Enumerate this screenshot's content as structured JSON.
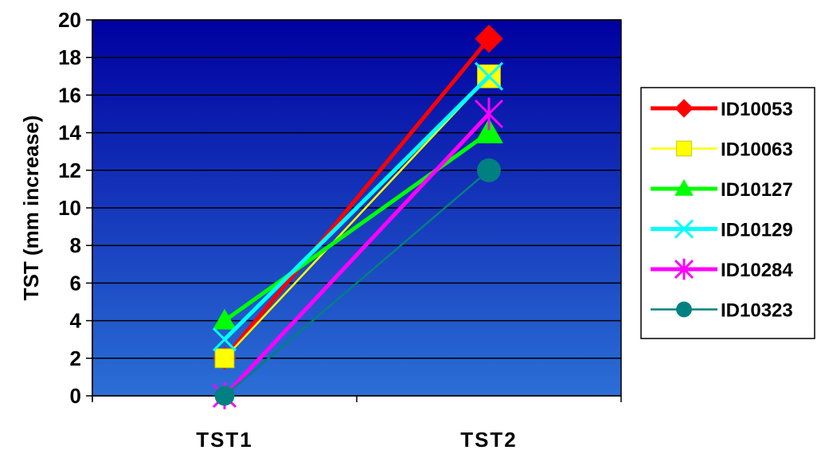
{
  "colors": {
    "plot_top": "#0000a0",
    "plot_bottom": "#2b6fd6",
    "gridline": "#000000"
  },
  "chart_data": {
    "type": "line",
    "title": "",
    "xlabel": "",
    "ylabel": "TST (mm increase)",
    "categories": [
      "TST1",
      "TST2"
    ],
    "ylim": [
      0,
      20
    ],
    "yticks": [
      0,
      2,
      4,
      6,
      8,
      10,
      12,
      14,
      16,
      18,
      20
    ],
    "grid": true,
    "legend_position": "right",
    "series": [
      {
        "name": "ID10053",
        "values": [
          2,
          19
        ],
        "color": "#ff0000",
        "marker": "diamond"
      },
      {
        "name": "ID10063",
        "values": [
          2,
          17
        ],
        "color": "#ffff00",
        "marker": "square"
      },
      {
        "name": "ID10127",
        "values": [
          4,
          14
        ],
        "color": "#00ff00",
        "marker": "triangle"
      },
      {
        "name": "ID10129",
        "values": [
          3,
          17
        ],
        "color": "#00ffff",
        "marker": "x"
      },
      {
        "name": "ID10284",
        "values": [
          0,
          15
        ],
        "color": "#ff00ff",
        "marker": "asterisk"
      },
      {
        "name": "ID10323",
        "values": [
          0,
          12
        ],
        "color": "#008080",
        "marker": "circle"
      }
    ]
  }
}
